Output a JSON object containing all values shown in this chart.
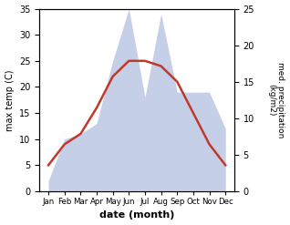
{
  "months": [
    "Jan",
    "Feb",
    "Mar",
    "Apr",
    "May",
    "Jun",
    "Jul",
    "Aug",
    "Sep",
    "Oct",
    "Nov",
    "Dec"
  ],
  "temperature": [
    5,
    9,
    11,
    16,
    22,
    25,
    25,
    24,
    21,
    15,
    9,
    5
  ],
  "precipitation_left_scale": [
    2,
    10,
    11,
    13,
    25,
    35,
    18,
    34,
    19,
    19,
    19,
    12
  ],
  "temp_color": "#c0392b",
  "precip_color": "#c5cfe8",
  "xlabel": "date (month)",
  "ylabel_left": "max temp (C)",
  "ylabel_right": "med. precipitation (kg/m2)",
  "ylim_left": [
    0,
    35
  ],
  "ylim_right": [
    0,
    25
  ],
  "yticks_left": [
    0,
    5,
    10,
    15,
    20,
    25,
    30,
    35
  ],
  "yticks_right": [
    0,
    5,
    10,
    15,
    20,
    25
  ],
  "background_color": "#ffffff",
  "line_width": 1.8
}
